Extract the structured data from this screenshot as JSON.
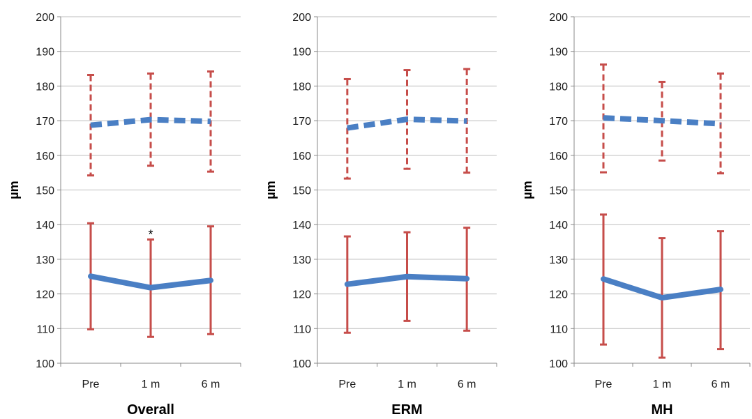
{
  "colors": {
    "mean_line": "#4a7fc4",
    "error_bar": "#c64d4a",
    "grid": "#bdbdbd",
    "axis": "#888888"
  },
  "chart_data": [
    {
      "type": "line",
      "title": "Overall",
      "ylabel": "µm",
      "ylim": [
        100,
        200
      ],
      "yticks": [
        100,
        110,
        120,
        130,
        140,
        150,
        160,
        170,
        180,
        190,
        200
      ],
      "categories": [
        "Pre",
        "1 m",
        "6 m"
      ],
      "grid": true,
      "series": [
        {
          "style": "dashed",
          "values": [
            168.7,
            170.3,
            169.8
          ],
          "err_low": [
            154.2,
            157.0,
            155.3
          ],
          "err_high": [
            183.2,
            183.6,
            184.2
          ]
        },
        {
          "style": "solid",
          "values": [
            125.1,
            121.8,
            123.9
          ],
          "err_low": [
            109.8,
            107.6,
            108.4
          ],
          "err_high": [
            140.4,
            135.7,
            139.5
          ]
        }
      ],
      "annotations": [
        {
          "text": "*",
          "category": "1 m",
          "y": 137.5
        }
      ]
    },
    {
      "type": "line",
      "title": "ERM",
      "ylabel": "µm",
      "ylim": [
        100,
        200
      ],
      "yticks": [
        100,
        110,
        120,
        130,
        140,
        150,
        160,
        170,
        180,
        190,
        200
      ],
      "categories": [
        "Pre",
        "1 m",
        "6 m"
      ],
      "grid": true,
      "series": [
        {
          "style": "dashed",
          "values": [
            167.9,
            170.4,
            169.9
          ],
          "err_low": [
            153.3,
            156.1,
            155.0
          ],
          "err_high": [
            182.0,
            184.6,
            184.9
          ]
        },
        {
          "style": "solid",
          "values": [
            122.8,
            125.0,
            124.4
          ],
          "err_low": [
            108.8,
            112.2,
            109.4
          ],
          "err_high": [
            136.6,
            137.8,
            139.1
          ]
        }
      ],
      "annotations": []
    },
    {
      "type": "line",
      "title": "MH",
      "ylabel": "µm",
      "ylim": [
        100,
        200
      ],
      "yticks": [
        100,
        110,
        120,
        130,
        140,
        150,
        160,
        170,
        180,
        190,
        200
      ],
      "categories": [
        "Pre",
        "1 m",
        "6 m"
      ],
      "grid": true,
      "series": [
        {
          "style": "dashed",
          "values": [
            170.8,
            170.0,
            169.1
          ],
          "err_low": [
            155.1,
            158.5,
            154.8
          ],
          "err_high": [
            186.2,
            181.2,
            183.6
          ]
        },
        {
          "style": "solid",
          "values": [
            124.3,
            118.9,
            121.3
          ],
          "err_low": [
            105.4,
            101.6,
            104.1
          ],
          "err_high": [
            142.9,
            136.1,
            138.1
          ]
        }
      ],
      "annotations": []
    }
  ]
}
